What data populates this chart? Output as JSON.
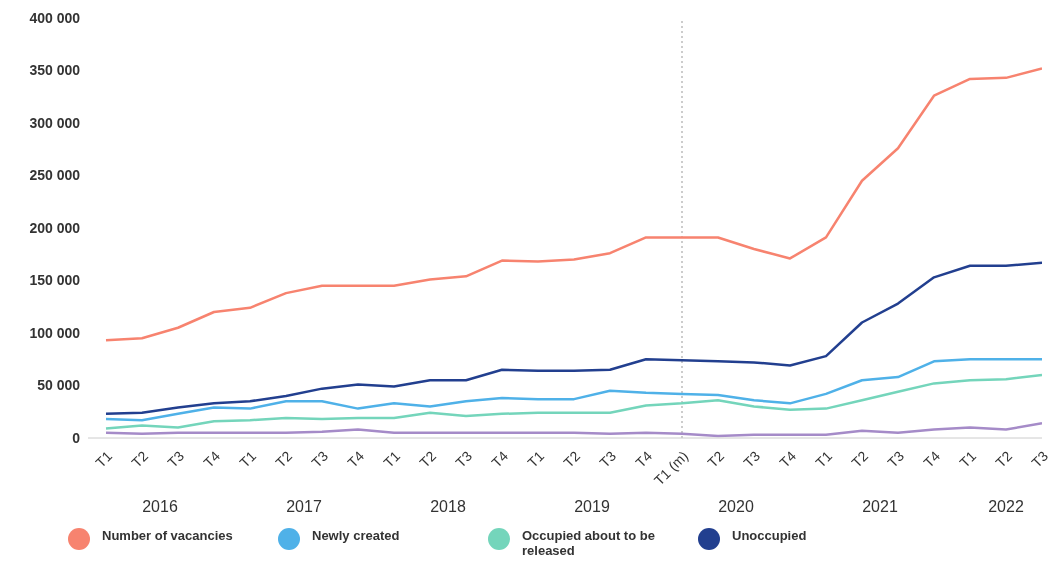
{
  "chart_data": {
    "type": "line",
    "categories": [
      "T1",
      "T2",
      "T3",
      "T4",
      "T1",
      "T2",
      "T3",
      "T4",
      "T1",
      "T2",
      "T3",
      "T4",
      "T1",
      "T2",
      "T3",
      "T4",
      "T1 (m)",
      "T2",
      "T3",
      "T4",
      "T1",
      "T2",
      "T3",
      "T4",
      "T1",
      "T2",
      "T3"
    ],
    "series": [
      {
        "name": "Number of vacancies",
        "color": "#f7836f",
        "values": [
          93000,
          95000,
          105000,
          120000,
          124000,
          138000,
          145000,
          145000,
          145000,
          151000,
          154000,
          169000,
          168000,
          170000,
          176000,
          191000,
          191000,
          191000,
          180000,
          171000,
          191000,
          245000,
          276000,
          326000,
          342000,
          343000,
          352000
        ]
      },
      {
        "name": "Newly created",
        "color": "#4fb1e8",
        "values": [
          18000,
          17000,
          23000,
          29000,
          28000,
          35000,
          35000,
          28000,
          33000,
          30000,
          35000,
          38000,
          37000,
          37000,
          45000,
          43000,
          42000,
          41000,
          36000,
          33000,
          42000,
          55000,
          58000,
          73000,
          75000,
          75000,
          75000
        ]
      },
      {
        "name": "Occupied about to be released",
        "color": "#74d5bb",
        "values": [
          9000,
          12000,
          10000,
          16000,
          17000,
          19000,
          18000,
          19000,
          19000,
          24000,
          21000,
          23000,
          24000,
          24000,
          24000,
          31000,
          33000,
          36000,
          30000,
          27000,
          28000,
          36000,
          44000,
          52000,
          55000,
          56000,
          60000
        ]
      },
      {
        "name": "Unoccupied",
        "color": "#223f8f",
        "values": [
          23000,
          24000,
          29000,
          33000,
          35000,
          40000,
          47000,
          51000,
          49000,
          55000,
          55000,
          65000,
          64000,
          64000,
          65000,
          75000,
          74000,
          73000,
          72000,
          69000,
          78000,
          110000,
          128000,
          153000,
          164000,
          164000,
          167000
        ]
      },
      {
        "color": "#a58bc8",
        "values": [
          5000,
          4000,
          5000,
          5000,
          5000,
          5000,
          6000,
          8000,
          5000,
          5000,
          5000,
          5000,
          5000,
          5000,
          4000,
          5000,
          4000,
          2000,
          3000,
          3000,
          3000,
          7000,
          5000,
          8000,
          10000,
          8000,
          14000
        ]
      }
    ],
    "ylim": [
      0,
      400000
    ],
    "yticks": [
      {
        "value": 0,
        "label": "0"
      },
      {
        "value": 50000,
        "label": "50 000"
      },
      {
        "value": 100000,
        "label": "100 000"
      },
      {
        "value": 150000,
        "label": "150 000"
      },
      {
        "value": 200000,
        "label": "200 000"
      },
      {
        "value": 250000,
        "label": "250 000"
      },
      {
        "value": 300000,
        "label": "300 000"
      },
      {
        "value": 350000,
        "label": "350 000"
      },
      {
        "value": 400000,
        "label": "400 000"
      }
    ],
    "annotations": [
      "2016",
      "2017",
      "2018",
      "2019",
      "2020",
      "2021",
      "2022"
    ],
    "ref_lines": [
      {
        "axis": "x",
        "value": "T1 (m)",
        "color": "#999999",
        "line_style": "dotted"
      }
    ],
    "grid": false,
    "legend": "bottom",
    "marker": "none",
    "line_style": "solid"
  }
}
